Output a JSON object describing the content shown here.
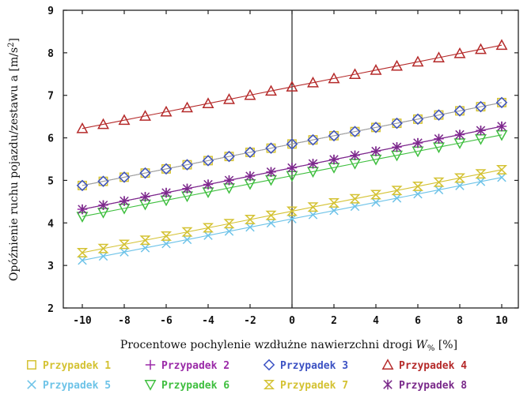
{
  "chart_data": {
    "type": "line",
    "title": "",
    "xlabel": "Procentowe pochylenie wzdłużne nawierzchni drogi W% [%]",
    "xlabel_main": "Procentowe pochylenie wzdłużne nawierzchni drogi ",
    "xlabel_var": "W",
    "xlabel_sub": "%",
    "xlabel_unit": " [%]",
    "ylabel": "Opóźnienie ruchu pojazdu/zestawu a [m/s²]",
    "ylabel_main": "Opóźnienie ruchu pojazdu/zestawu  a  [m/s",
    "ylabel_sup": "2",
    "ylabel_end": "]",
    "xlim": [
      -11,
      11
    ],
    "ylim": [
      2,
      9
    ],
    "xticks": [
      -10,
      -8,
      -6,
      -4,
      -2,
      0,
      2,
      4,
      6,
      8,
      10
    ],
    "xtick_labels": [
      "-10",
      "-8",
      "-6",
      "-4",
      "-2",
      "0",
      "2",
      "4",
      "6",
      "8",
      "10"
    ],
    "yticks": [
      2,
      3,
      4,
      5,
      6,
      7,
      8,
      9
    ],
    "ytick_labels": [
      "2",
      "3",
      "4",
      "5",
      "6",
      "7",
      "8",
      "9"
    ],
    "grid": false,
    "x": [
      -10,
      -9,
      -8,
      -7,
      -6,
      -5,
      -4,
      -3,
      -2,
      -1,
      0,
      1,
      2,
      3,
      4,
      5,
      6,
      7,
      8,
      9,
      10
    ],
    "series": [
      {
        "name": "Przypadek 1",
        "marker": "square",
        "color": "#d4c233",
        "line_color": "#9e9e9e",
        "start": 4.88,
        "end": 6.83
      },
      {
        "name": "Przypadek 2",
        "marker": "plus",
        "color": "#9b2aa8",
        "line_color": "#9b2aa8",
        "start": 4.32,
        "end": 6.27
      },
      {
        "name": "Przypadek 3",
        "marker": "diamond",
        "color": "#3c52c4",
        "line_color": "#9e9e9e",
        "start": 4.88,
        "end": 6.83
      },
      {
        "name": "Przypadek 4",
        "marker": "triangle-up",
        "color": "#b52a2a",
        "line_color": "#b52a2a",
        "start": 6.22,
        "end": 8.18
      },
      {
        "name": "Przypadek 5",
        "marker": "x",
        "color": "#6ec3e8",
        "line_color": "#6ec3e8",
        "start": 3.12,
        "end": 5.07
      },
      {
        "name": "Przypadek 6",
        "marker": "triangle-down",
        "color": "#3fbf3f",
        "line_color": "#3fbf3f",
        "start": 4.15,
        "end": 6.07
      },
      {
        "name": "Przypadek 7",
        "marker": "hourglass",
        "color": "#d4c233",
        "line_color": "#d4c233",
        "start": 3.3,
        "end": 5.25
      },
      {
        "name": "Przypadek 8",
        "marker": "asterisk",
        "color": "#7a2a8a",
        "line_color": "#7a2a8a",
        "start": 4.32,
        "end": 6.27
      }
    ],
    "legend_position": "bottom"
  }
}
